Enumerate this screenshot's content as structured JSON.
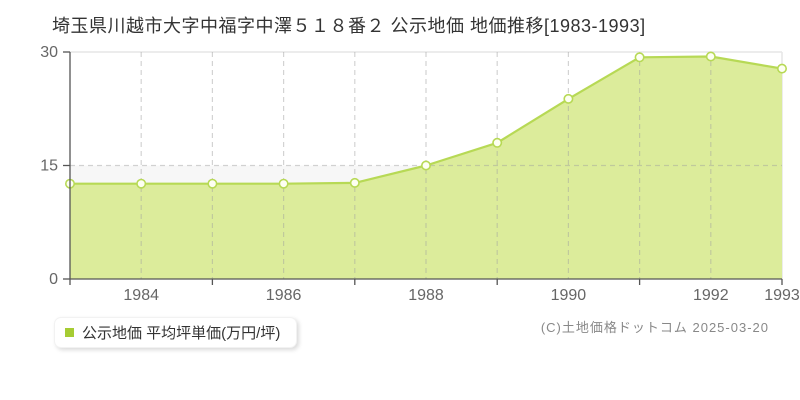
{
  "page": {
    "title": "埼玉県川越市大字中福字中澤５１８番２ 公示地価 地価推移[1983-1993]",
    "copyright": "(C)土地価格ドットコム 2025-03-20"
  },
  "legend": {
    "marker_color": "#a6cc33",
    "label": "公示地価 平均坪単価(万円/坪)"
  },
  "chart_data": {
    "type": "area",
    "title": "埼玉県川越市大字中福字中澤５１８番２ 公示地価 地価推移[1983-1993]",
    "series_name": "公示地価 平均坪単価(万円/坪)",
    "x": [
      1983,
      1984,
      1985,
      1986,
      1987,
      1988,
      1989,
      1990,
      1991,
      1992,
      1993
    ],
    "values": [
      12.6,
      12.6,
      12.6,
      12.6,
      12.7,
      15.0,
      18.0,
      23.8,
      29.3,
      29.4,
      27.8
    ],
    "xlabel": "",
    "ylabel": "万円/坪",
    "ylim": [
      0,
      30
    ],
    "yticks": [
      0,
      15,
      30
    ],
    "xtick_label_years": [
      1984,
      1986,
      1988,
      1990,
      1992,
      1993
    ],
    "xtick_minor_years": [
      1985,
      1987,
      1989,
      1991
    ],
    "grid": "vertical dashed per year, horizontal dashed at 15",
    "legend_position": "bottom-left",
    "colors": {
      "area_fill": "#dcec9b",
      "line": "#b7d955",
      "marker_fill": "#fdfff2",
      "band_below_15": "#f7f7f7",
      "gridline": "#9f9f9f",
      "plot_border": "#e6e6e6",
      "axis": "#555555",
      "tick_label": "#666666"
    }
  }
}
